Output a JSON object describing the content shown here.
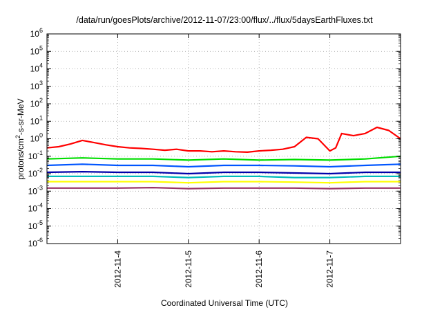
{
  "chart_data": {
    "type": "line",
    "title": "/data/run/goesPlots/archive/2012-11-07/23:00/flux/../flux/5daysEarthFluxes.txt",
    "xlabel": "Coordinated Universal Time (UTC)",
    "ylabel_parts": {
      "base": "protons/cm",
      "sup": "2",
      "rest": "-s-sr-MeV"
    },
    "y_scale": "log",
    "ylim": [
      1e-06,
      1000000.0
    ],
    "y_ticks": [
      {
        "value": 1e-06,
        "base": "10",
        "exp": "-6"
      },
      {
        "value": 1e-05,
        "base": "10",
        "exp": "-5"
      },
      {
        "value": 0.0001,
        "base": "10",
        "exp": "-4"
      },
      {
        "value": 0.001,
        "base": "10",
        "exp": "-3"
      },
      {
        "value": 0.01,
        "base": "10",
        "exp": "-2"
      },
      {
        "value": 0.1,
        "base": "10",
        "exp": "-1"
      },
      {
        "value": 1.0,
        "base": "10",
        "exp": "0"
      },
      {
        "value": 10.0,
        "base": "10",
        "exp": "1"
      },
      {
        "value": 100.0,
        "base": "10",
        "exp": "2"
      },
      {
        "value": 1000.0,
        "base": "10",
        "exp": "3"
      },
      {
        "value": 10000.0,
        "base": "10",
        "exp": "4"
      },
      {
        "value": 100000.0,
        "base": "10",
        "exp": "5"
      },
      {
        "value": 1000000.0,
        "base": "10",
        "exp": "6"
      }
    ],
    "xlim": [
      "2012-11-03",
      "2012-11-08"
    ],
    "x_ticks": [
      "2012-11-4",
      "2012-11-5",
      "2012-11-6",
      "2012-11-7"
    ],
    "grid": true,
    "series": [
      {
        "color": "#ff0000",
        "x": [
          "2012-11-03 00:00",
          "2012-11-03 04:00",
          "2012-11-03 08:00",
          "2012-11-03 12:00",
          "2012-11-03 16:00",
          "2012-11-03 20:00",
          "2012-11-04 00:00",
          "2012-11-04 04:00",
          "2012-11-04 08:00",
          "2012-11-04 12:00",
          "2012-11-04 16:00",
          "2012-11-04 20:00",
          "2012-11-05 00:00",
          "2012-11-05 04:00",
          "2012-11-05 08:00",
          "2012-11-05 12:00",
          "2012-11-05 16:00",
          "2012-11-05 20:00",
          "2012-11-06 00:00",
          "2012-11-06 04:00",
          "2012-11-06 08:00",
          "2012-11-06 12:00",
          "2012-11-06 16:00",
          "2012-11-06 20:00",
          "2012-11-07 00:00",
          "2012-11-07 02:00",
          "2012-11-07 04:00",
          "2012-11-07 08:00",
          "2012-11-07 12:00",
          "2012-11-07 16:00",
          "2012-11-07 20:00",
          "2012-11-08 00:00"
        ],
        "values": [
          0.3,
          0.35,
          0.5,
          0.8,
          0.6,
          0.45,
          0.35,
          0.3,
          0.28,
          0.25,
          0.22,
          0.25,
          0.2,
          0.2,
          0.18,
          0.2,
          0.18,
          0.17,
          0.2,
          0.22,
          0.25,
          0.35,
          1.2,
          1.0,
          0.2,
          0.3,
          2.0,
          1.5,
          2.0,
          4.5,
          3.0,
          1.0
        ]
      },
      {
        "color": "#00dd00",
        "x": [
          "2012-11-03 00:00",
          "2012-11-03 12:00",
          "2012-11-04 00:00",
          "2012-11-04 12:00",
          "2012-11-05 00:00",
          "2012-11-05 12:00",
          "2012-11-06 00:00",
          "2012-11-06 12:00",
          "2012-11-07 00:00",
          "2012-11-07 12:00",
          "2012-11-08 00:00"
        ],
        "values": [
          0.07,
          0.08,
          0.07,
          0.07,
          0.06,
          0.07,
          0.06,
          0.065,
          0.06,
          0.07,
          0.1
        ]
      },
      {
        "color": "#0055ff",
        "x": [
          "2012-11-03 00:00",
          "2012-11-03 12:00",
          "2012-11-04 00:00",
          "2012-11-04 12:00",
          "2012-11-05 00:00",
          "2012-11-05 12:00",
          "2012-11-06 00:00",
          "2012-11-06 12:00",
          "2012-11-07 00:00",
          "2012-11-07 12:00",
          "2012-11-08 00:00"
        ],
        "values": [
          0.03,
          0.035,
          0.03,
          0.03,
          0.025,
          0.03,
          0.03,
          0.028,
          0.025,
          0.03,
          0.035
        ]
      },
      {
        "color": "#0000aa",
        "x": [
          "2012-11-03 00:00",
          "2012-11-03 12:00",
          "2012-11-04 00:00",
          "2012-11-04 12:00",
          "2012-11-05 00:00",
          "2012-11-05 12:00",
          "2012-11-06 00:00",
          "2012-11-06 12:00",
          "2012-11-07 00:00",
          "2012-11-07 12:00",
          "2012-11-08 00:00"
        ],
        "values": [
          0.012,
          0.013,
          0.012,
          0.012,
          0.01,
          0.012,
          0.012,
          0.011,
          0.01,
          0.012,
          0.012
        ]
      },
      {
        "color": "#00bbbb",
        "x": [
          "2012-11-03 00:00",
          "2012-11-03 12:00",
          "2012-11-04 00:00",
          "2012-11-04 12:00",
          "2012-11-05 00:00",
          "2012-11-05 12:00",
          "2012-11-06 00:00",
          "2012-11-06 12:00",
          "2012-11-07 00:00",
          "2012-11-07 12:00",
          "2012-11-08 00:00"
        ],
        "values": [
          0.007,
          0.007,
          0.007,
          0.007,
          0.006,
          0.007,
          0.007,
          0.006,
          0.006,
          0.007,
          0.007
        ]
      },
      {
        "color": "#ffff00",
        "x": [
          "2012-11-03 00:00",
          "2012-11-03 12:00",
          "2012-11-04 00:00",
          "2012-11-04 12:00",
          "2012-11-05 00:00",
          "2012-11-05 12:00",
          "2012-11-06 00:00",
          "2012-11-06 12:00",
          "2012-11-07 00:00",
          "2012-11-07 12:00",
          "2012-11-08 00:00"
        ],
        "values": [
          0.0035,
          0.0035,
          0.0035,
          0.0035,
          0.003,
          0.0035,
          0.0035,
          0.0033,
          0.003,
          0.0035,
          0.0035
        ]
      },
      {
        "color": "#993366",
        "x": [
          "2012-11-03 00:00",
          "2012-11-03 12:00",
          "2012-11-04 00:00",
          "2012-11-04 12:00",
          "2012-11-05 00:00",
          "2012-11-05 12:00",
          "2012-11-06 00:00",
          "2012-11-06 12:00",
          "2012-11-07 00:00",
          "2012-11-07 12:00",
          "2012-11-08 00:00"
        ],
        "values": [
          0.0015,
          0.0015,
          0.0015,
          0.0016,
          0.0014,
          0.0015,
          0.0015,
          0.0015,
          0.0014,
          0.0015,
          0.0015
        ]
      }
    ]
  }
}
